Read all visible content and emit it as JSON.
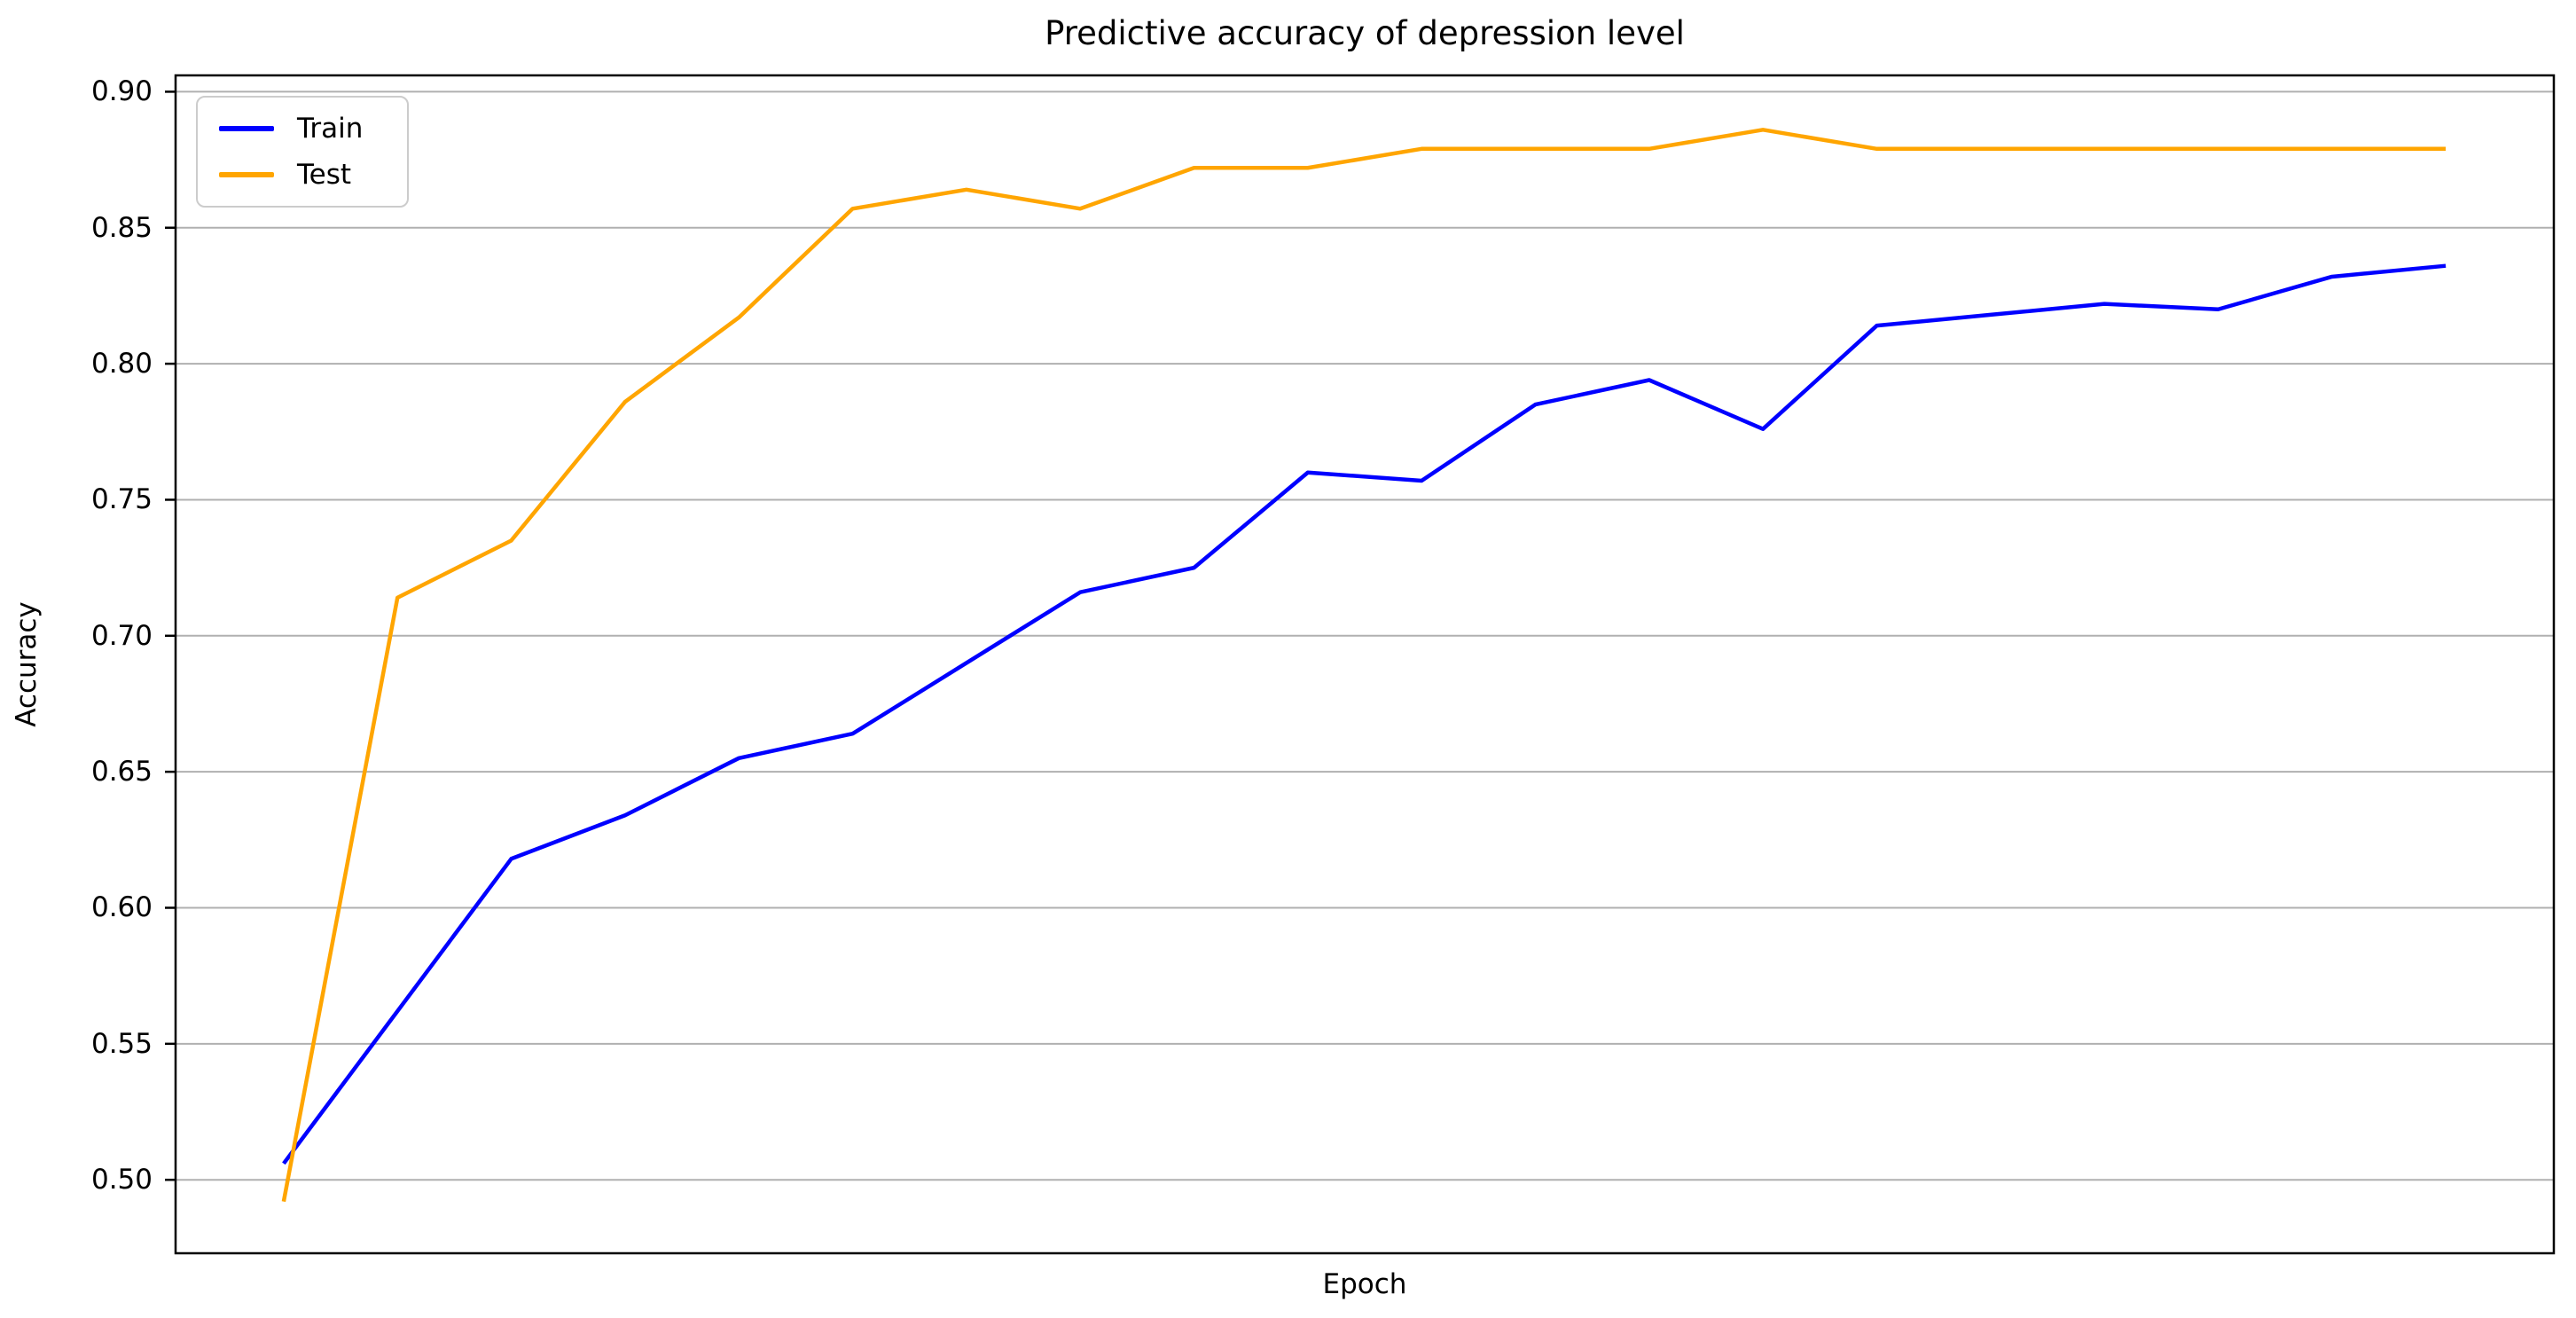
{
  "chart_data": {
    "type": "line",
    "title": "Predictive accuracy of depression level",
    "xlabel": "Epoch",
    "ylabel": "Accuracy",
    "x": [
      0,
      1,
      2,
      3,
      4,
      5,
      6,
      7,
      8,
      9,
      10,
      11,
      12,
      13,
      14,
      15,
      16,
      17,
      18,
      19
    ],
    "series": [
      {
        "name": "Train",
        "color": "#0000ff",
        "values": [
          0.506,
          0.562,
          0.618,
          0.634,
          0.655,
          0.664,
          0.69,
          0.716,
          0.725,
          0.76,
          0.757,
          0.785,
          0.794,
          0.776,
          0.814,
          0.818,
          0.822,
          0.82,
          0.832,
          0.836
        ]
      },
      {
        "name": "Test",
        "color": "#ffa500",
        "values": [
          0.492,
          0.714,
          0.735,
          0.786,
          0.817,
          0.857,
          0.864,
          0.857,
          0.872,
          0.872,
          0.879,
          0.879,
          0.879,
          0.886,
          0.879,
          0.879,
          0.879,
          0.879,
          0.879,
          0.879
        ]
      }
    ],
    "xlim": [
      -0.95,
      19.95
    ],
    "ylim": [
      0.473,
      0.906
    ],
    "yticks": [
      0.5,
      0.55,
      0.6,
      0.65,
      0.7,
      0.75,
      0.8,
      0.85,
      0.9
    ],
    "xticks_labels_visible": false,
    "grid": "horizontal",
    "grid_color": "#b0b0b0",
    "legend_position": "upper left"
  }
}
